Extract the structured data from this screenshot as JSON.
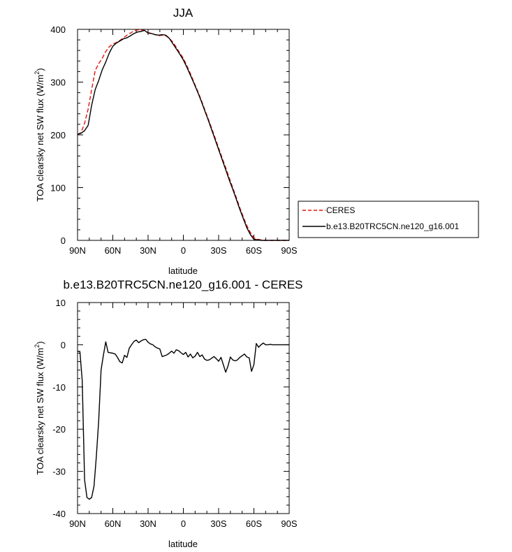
{
  "chart_data": [
    {
      "type": "line",
      "title": "JJA",
      "xlabel": "latitude",
      "ylabel": "TOA clearsky net SW flux (W/m",
      "ylabel_sup": "2",
      "ylabel_close": ")",
      "xlim": [
        90,
        -90
      ],
      "ylim": [
        0,
        400
      ],
      "x_ticks": [
        90,
        60,
        30,
        0,
        -30,
        -60,
        -90
      ],
      "x_tick_labels": [
        "90N",
        "60N",
        "30N",
        "0",
        "30S",
        "60S",
        "90S"
      ],
      "y_ticks": [
        0,
        100,
        200,
        300,
        400
      ],
      "y_tick_labels": [
        "0",
        "100",
        "200",
        "300",
        "400"
      ],
      "legend_position": "outside-right",
      "grid": false,
      "series": [
        {
          "name": "CERES",
          "color": "#e3120b",
          "dash": "dashed",
          "x": [
            90,
            87,
            84,
            81,
            78,
            75,
            72,
            69,
            66,
            63,
            60,
            57,
            54,
            51,
            48,
            45,
            42,
            39,
            36,
            33,
            30,
            27,
            24,
            21,
            18,
            15,
            12,
            9,
            6,
            3,
            0,
            -3,
            -6,
            -9,
            -12,
            -15,
            -18,
            -21,
            -24,
            -27,
            -30,
            -33,
            -36,
            -39,
            -42,
            -45,
            -48,
            -51,
            -54,
            -57,
            -60,
            -63,
            -66,
            -69,
            -72,
            -75,
            -78,
            -81,
            -84,
            -87,
            -90
          ],
          "y": [
            201,
            204,
            222,
            249,
            286,
            322,
            335,
            345,
            358,
            367,
            372,
            375,
            379,
            384,
            389,
            393,
            397,
            399,
            399,
            398,
            394,
            392,
            390,
            388,
            389,
            388,
            383,
            376,
            366,
            355,
            345,
            331,
            316,
            300,
            284,
            267,
            249,
            231,
            213,
            194,
            175,
            156,
            138,
            119,
            100,
            81,
            62,
            44,
            28,
            15,
            5,
            2,
            1,
            0,
            0,
            0,
            0,
            0,
            0,
            0,
            0
          ]
        },
        {
          "name": "b.e13.B20TRC5CN.ne120_g16.001",
          "color": "#000000",
          "dash": "solid",
          "x": [
            90,
            87,
            84,
            81,
            78,
            75,
            72,
            69,
            66,
            63,
            60,
            57,
            54,
            51,
            48,
            45,
            42,
            39,
            36,
            33,
            30,
            27,
            24,
            21,
            18,
            15,
            12,
            9,
            6,
            3,
            0,
            -3,
            -6,
            -9,
            -12,
            -15,
            -18,
            -21,
            -24,
            -27,
            -30,
            -33,
            -36,
            -39,
            -42,
            -45,
            -48,
            -51,
            -54,
            -57,
            -60,
            -63,
            -66,
            -69,
            -72,
            -75,
            -78,
            -81,
            -84,
            -87,
            -90
          ],
          "y": [
            201,
            203,
            208,
            218,
            256,
            286,
            303,
            323,
            338,
            355,
            368,
            374,
            378,
            382,
            384,
            388,
            392,
            395,
            396,
            398,
            393,
            392,
            390,
            389,
            390,
            389,
            383,
            373,
            363,
            353,
            342,
            328,
            313,
            298,
            282,
            265,
            247,
            229,
            210,
            191,
            172,
            153,
            134,
            115,
            97,
            78,
            59,
            41,
            24,
            11,
            2,
            1,
            0,
            0,
            0,
            0,
            0,
            0,
            0,
            0,
            0
          ]
        }
      ]
    },
    {
      "type": "line",
      "title": "b.e13.B20TRC5CN.ne120_g16.001 - CERES",
      "xlabel": "latitude",
      "ylabel": "TOA clearsky net SW flux (W/m",
      "ylabel_sup": "2",
      "ylabel_close": ")",
      "xlim": [
        90,
        -90
      ],
      "ylim": [
        -40,
        10
      ],
      "x_ticks": [
        90,
        60,
        30,
        0,
        -30,
        -60,
        -90
      ],
      "x_tick_labels": [
        "90N",
        "60N",
        "30N",
        "0",
        "30S",
        "60S",
        "90S"
      ],
      "y_ticks": [
        -40,
        -30,
        -20,
        -10,
        0,
        10
      ],
      "y_tick_labels": [
        "-40",
        "-30",
        "-20",
        "-10",
        "0",
        "10"
      ],
      "grid": false,
      "series": [
        {
          "color": "#000000",
          "dash": "solid",
          "x": [
            90,
            88,
            86,
            84,
            82,
            80,
            78,
            76,
            74,
            72,
            70,
            68,
            66,
            64,
            62,
            60,
            58,
            56,
            54,
            52,
            50,
            48,
            46,
            44,
            42,
            40,
            38,
            36,
            34,
            32,
            30,
            28,
            26,
            24,
            22,
            20,
            18,
            16,
            14,
            12,
            10,
            8,
            6,
            4,
            2,
            0,
            -2,
            -4,
            -6,
            -8,
            -10,
            -12,
            -14,
            -16,
            -18,
            -20,
            -22,
            -24,
            -26,
            -28,
            -30,
            -32,
            -34,
            -36,
            -38,
            -40,
            -42,
            -44,
            -46,
            -48,
            -50,
            -52,
            -54,
            -56,
            -58,
            -60,
            -62,
            -64,
            -66,
            -68,
            -70,
            -72,
            -74,
            -76,
            -78,
            -80,
            -82,
            -84,
            -86,
            -88,
            -90
          ],
          "y": [
            -1.5,
            -1.6,
            -8.5,
            -32.0,
            -36.2,
            -36.6,
            -36.2,
            -33.5,
            -26.5,
            -18.0,
            -6.0,
            -2.5,
            0.7,
            -1.8,
            -1.9,
            -2.0,
            -2.2,
            -3.0,
            -4.0,
            -4.3,
            -2.5,
            -3.0,
            -0.8,
            0.0,
            0.8,
            1.1,
            0.5,
            0.9,
            1.2,
            1.3,
            0.6,
            0.2,
            0.0,
            -0.5,
            -0.8,
            -1.0,
            -2.8,
            -2.6,
            -2.4,
            -2.0,
            -1.5,
            -2.0,
            -1.2,
            -1.4,
            -1.9,
            -2.3,
            -1.8,
            -2.9,
            -2.2,
            -3.1,
            -2.7,
            -1.8,
            -2.8,
            -2.4,
            -3.4,
            -3.7,
            -3.6,
            -3.2,
            -2.8,
            -3.3,
            -3.9,
            -3.0,
            -4.7,
            -6.5,
            -5.0,
            -2.9,
            -3.6,
            -3.8,
            -3.6,
            -3.0,
            -2.6,
            -2.2,
            -2.9,
            -3.1,
            -6.3,
            -4.7,
            0.3,
            -0.6,
            0.0,
            0.4,
            0.0,
            0.0,
            0.1,
            0.0,
            0.0,
            0.0,
            0.0,
            0.0,
            0.0,
            0.0,
            0.0
          ]
        }
      ]
    }
  ]
}
